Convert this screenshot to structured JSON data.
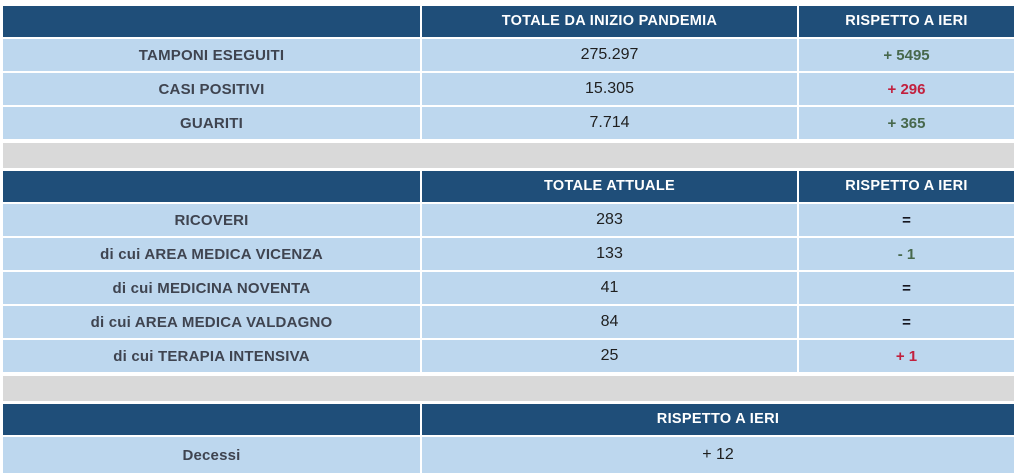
{
  "colors": {
    "header_bg": "#1F4E79",
    "row_bg": "#BDD7EE",
    "spacer_bg": "#D9D9D9",
    "label_text": "#3F4450",
    "value_text": "#1F1F1F",
    "header_text": "#FFFFFF",
    "positive": "#47684C",
    "negative": "#C2203E",
    "neutral": "#15151F"
  },
  "chart_data": [
    {
      "type": "table",
      "title": "Totali da inizio pandemia",
      "columns": [
        "",
        "TOTALE DA INIZIO PANDEMIA",
        "RISPETTO A IERI"
      ],
      "rows": [
        {
          "label": "TAMPONI ESEGUITI",
          "value": "275.297",
          "delta": "+ 5495",
          "trend": "positive"
        },
        {
          "label": "CASI POSITIVI",
          "value": "15.305",
          "delta": "+ 296",
          "trend": "negative"
        },
        {
          "label": "GUARITI",
          "value": "7.714",
          "delta": "+ 365",
          "trend": "positive"
        }
      ]
    },
    {
      "type": "table",
      "title": "Totale attuale ricoveri",
      "columns": [
        "",
        "TOTALE ATTUALE",
        "RISPETTO A IERI"
      ],
      "rows": [
        {
          "label": "RICOVERI",
          "value": "283",
          "delta": "=",
          "trend": "neutral"
        },
        {
          "label": "di cui AREA MEDICA VICENZA",
          "value": "133",
          "delta": "- 1",
          "trend": "positive"
        },
        {
          "label": "di cui MEDICINA NOVENTA",
          "value": "41",
          "delta": "=",
          "trend": "neutral"
        },
        {
          "label": "di cui AREA MEDICA VALDAGNO",
          "value": "84",
          "delta": "=",
          "trend": "neutral"
        },
        {
          "label": "di cui TERAPIA INTENSIVA",
          "value": "25",
          "delta": "+ 1",
          "trend": "negative"
        }
      ]
    },
    {
      "type": "table",
      "title": "Decessi",
      "columns": [
        "",
        "RISPETTO A IERI"
      ],
      "rows": [
        {
          "label": "Decessi",
          "value": "+ 12",
          "trend": "neutral"
        }
      ]
    }
  ]
}
